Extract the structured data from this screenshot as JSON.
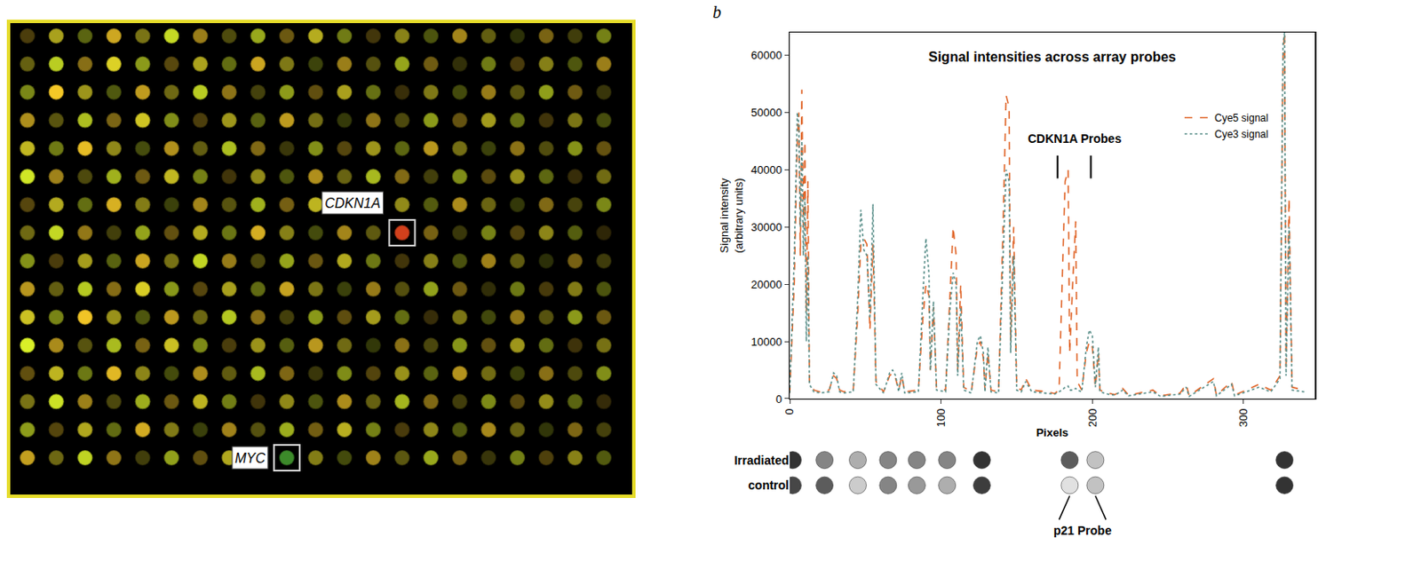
{
  "chart_data": {
    "type": "line",
    "panel": "b",
    "title": "Signal intensities across array probes",
    "x_label": "Pixels",
    "y_label": "Signal intensity (arbitrary units)",
    "xlim": [
      0,
      347
    ],
    "xticks": [
      0,
      100,
      200,
      300
    ],
    "ylim": [
      0,
      64000
    ],
    "yticks": [
      0,
      10000,
      20000,
      30000,
      40000,
      50000,
      60000
    ],
    "grid": false,
    "legend": "upper right",
    "x": [
      0,
      3,
      5,
      6,
      7,
      8,
      9,
      10,
      11,
      12,
      13,
      16,
      20,
      26,
      29,
      31,
      33,
      36,
      42,
      45,
      47,
      49,
      51,
      53,
      55,
      57,
      62,
      66,
      68,
      70,
      72,
      74,
      76,
      85,
      88,
      90,
      92,
      93,
      95,
      97,
      103,
      106,
      108,
      110,
      111,
      113,
      115,
      120,
      124,
      126,
      128,
      129,
      131,
      133,
      138,
      141,
      143,
      145,
      146,
      148,
      150,
      153,
      156,
      160,
      170,
      175,
      178,
      180,
      182,
      184,
      185,
      187,
      189,
      190,
      193,
      196,
      198,
      200,
      202,
      204,
      205,
      210,
      215,
      220,
      224,
      240,
      245,
      258,
      262,
      264,
      280,
      282,
      292,
      294,
      310,
      318,
      324,
      326,
      327,
      328,
      330,
      332,
      340
    ],
    "series": [
      {
        "name": "Cye5 signal",
        "color": "#e0662a",
        "line_style": "dash",
        "values": [
          1000,
          20000,
          45000,
          50000,
          25000,
          54000,
          30000,
          45000,
          15000,
          38000,
          3000,
          1500,
          1200,
          1500,
          4000,
          3500,
          1500,
          1200,
          1500,
          15000,
          27000,
          28000,
          27000,
          12000,
          27000,
          3000,
          1200,
          4000,
          4500,
          3500,
          1500,
          4000,
          1200,
          1500,
          14000,
          20000,
          18000,
          5000,
          16000,
          2000,
          1500,
          20000,
          30000,
          25000,
          5000,
          20000,
          2000,
          1200,
          9000,
          10000,
          7000,
          1500,
          8000,
          1500,
          1200,
          30000,
          53000,
          51000,
          10000,
          30000,
          2000,
          1500,
          3500,
          1500,
          1200,
          900,
          1500,
          20000,
          38000,
          40000,
          8000,
          20000,
          31000,
          3000,
          1500,
          8000,
          10000,
          9000,
          2000,
          8000,
          1500,
          1000,
          700,
          1800,
          600,
          1500,
          500,
          1000,
          2500,
          500,
          3500,
          600,
          3000,
          600,
          2500,
          1500,
          4000,
          60000,
          64000,
          5000,
          35000,
          2000,
          1500
        ]
      },
      {
        "name": "Cye3 signal",
        "color": "#5a8f8a",
        "line_style": "dot",
        "values": [
          1000,
          25000,
          50000,
          48000,
          30000,
          45000,
          25000,
          35000,
          10000,
          25000,
          2500,
          1200,
          1000,
          1200,
          4500,
          4000,
          1200,
          1000,
          1200,
          18000,
          33000,
          26000,
          25000,
          14000,
          34000,
          2500,
          1000,
          4500,
          5000,
          4000,
          1200,
          4500,
          1000,
          1200,
          18000,
          28000,
          22000,
          5000,
          17000,
          1500,
          1200,
          16000,
          22000,
          20000,
          4000,
          16000,
          1500,
          1000,
          10000,
          11000,
          8000,
          1200,
          9000,
          1200,
          1000,
          25000,
          40000,
          38000,
          8000,
          25000,
          1500,
          1200,
          3000,
          1200,
          1000,
          800,
          1200,
          1500,
          2000,
          2200,
          1500,
          1500,
          1800,
          1500,
          1200,
          9000,
          12000,
          11000,
          2000,
          9000,
          1200,
          800,
          600,
          1500,
          500,
          1200,
          400,
          800,
          2000,
          400,
          3000,
          500,
          2500,
          500,
          2000,
          1200,
          3500,
          62000,
          64000,
          4000,
          30000,
          1500,
          1200
        ]
      }
    ],
    "annotations": [
      {
        "text": "CDKN1A Probes",
        "x": 188,
        "y": 45500,
        "marks": [
          177,
          199
        ]
      }
    ]
  },
  "spot_strip": {
    "x": [
      2,
      23,
      45,
      65,
      84,
      104,
      127,
      185,
      202,
      327
    ],
    "rows": [
      {
        "label": "Irradiated",
        "intensity": [
          0.9,
          0.5,
          0.3,
          0.5,
          0.5,
          0.5,
          0.9,
          0.7,
          0.2,
          0.9
        ]
      },
      {
        "label": "control",
        "intensity": [
          0.8,
          0.7,
          0.15,
          0.5,
          0.4,
          0.3,
          0.85,
          0.05,
          0.2,
          0.9
        ]
      }
    ],
    "probe_label": "p21 Probe",
    "probe_x": [
      185,
      202
    ]
  },
  "array_image": {
    "rows": 16,
    "columns": 21,
    "labels": [
      {
        "text": "CDKN1A",
        "row": 7,
        "column": 13,
        "color": "#d2401c"
      },
      {
        "text": "MYC",
        "row": 15,
        "column": 9,
        "color": "#3c8a2a"
      }
    ]
  }
}
